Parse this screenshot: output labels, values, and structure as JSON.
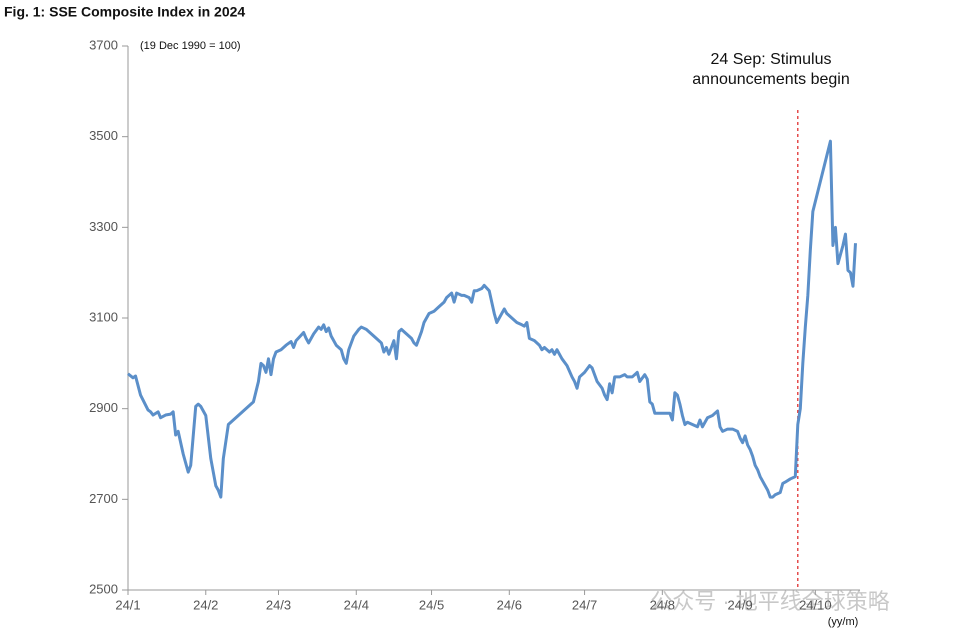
{
  "chart_data": {
    "type": "line",
    "title": "Fig. 1: SSE Composite Index in 2024",
    "subtitle": "(19 Dec 1990 = 100)",
    "x_label": "(yy/m)",
    "annotation": {
      "text": [
        "24 Sep: Stimulus",
        "announcements begin"
      ],
      "x": 268,
      "color": "#e03030"
    },
    "watermark": "公众号 · 地平线全球策略",
    "xlim": [
      1,
      292
    ],
    "xticks": [
      {
        "value": 1,
        "label": "24/1"
      },
      {
        "value": 32,
        "label": "24/2"
      },
      {
        "value": 61,
        "label": "24/3"
      },
      {
        "value": 92,
        "label": "24/4"
      },
      {
        "value": 122,
        "label": "24/5"
      },
      {
        "value": 153,
        "label": "24/6"
      },
      {
        "value": 183,
        "label": "24/7"
      },
      {
        "value": 214,
        "label": "24/8"
      },
      {
        "value": 245,
        "label": "24/9"
      },
      {
        "value": 275,
        "label": "24/10"
      }
    ],
    "ylim": [
      2500,
      3700
    ],
    "yticks": [
      2500,
      2700,
      2900,
      3100,
      3300,
      3500,
      3700
    ],
    "grid": false,
    "x": [
      1,
      3,
      4,
      6,
      9,
      10,
      11,
      13,
      14,
      16,
      18,
      19,
      20,
      21,
      23,
      25,
      26,
      28,
      29,
      30,
      32,
      34,
      35,
      36,
      37,
      38,
      39,
      41,
      51,
      53,
      54,
      55,
      56,
      57,
      58,
      59,
      60,
      62,
      64,
      66,
      67,
      68,
      70,
      71,
      72,
      73,
      75,
      77,
      78,
      79,
      80,
      81,
      82,
      84,
      85,
      86,
      87,
      88,
      89,
      91,
      93,
      94,
      96,
      98,
      100,
      102,
      103,
      104,
      105,
      107,
      108,
      109,
      110,
      112,
      114,
      115,
      116,
      118,
      119,
      121,
      123,
      125,
      127,
      128,
      130,
      131,
      132,
      134,
      135,
      137,
      138,
      139,
      140,
      142,
      143,
      145,
      147,
      148,
      149,
      151,
      152,
      154,
      156,
      158,
      159,
      160,
      161,
      163,
      165,
      166,
      167,
      169,
      170,
      171,
      172,
      174,
      176,
      178,
      179,
      180,
      181,
      183,
      185,
      186,
      188,
      190,
      191,
      192,
      193,
      194,
      195,
      197,
      199,
      200,
      202,
      204,
      205,
      207,
      208,
      209,
      210,
      211,
      213,
      215,
      217,
      218,
      219,
      220,
      221,
      222,
      223,
      224,
      226,
      228,
      229,
      230,
      232,
      234,
      236,
      237,
      238,
      240,
      242,
      244,
      245,
      246,
      247,
      248,
      249,
      250,
      251,
      252,
      253,
      254,
      255,
      256,
      257,
      258,
      259,
      261,
      262,
      263,
      265,
      267,
      268,
      269,
      270,
      271,
      272,
      273,
      274,
      281,
      282,
      283,
      284,
      286,
      287,
      288,
      289,
      290,
      291
    ],
    "series": [
      {
        "name": "SSE Composite Index",
        "color": "#5b8fc9",
        "values": [
          2977,
          2968,
          2972,
          2930,
          2897,
          2893,
          2886,
          2893,
          2880,
          2886,
          2888,
          2893,
          2842,
          2850,
          2800,
          2760,
          2775,
          2905,
          2910,
          2905,
          2885,
          2790,
          2760,
          2730,
          2720,
          2705,
          2790,
          2865,
          2915,
          2960,
          3000,
          2995,
          2980,
          3010,
          2975,
          3010,
          3025,
          3030,
          3040,
          3048,
          3035,
          3050,
          3062,
          3068,
          3055,
          3045,
          3065,
          3080,
          3075,
          3085,
          3070,
          3078,
          3060,
          3040,
          3035,
          3030,
          3010,
          3000,
          3030,
          3060,
          3075,
          3080,
          3075,
          3065,
          3055,
          3045,
          3025,
          3035,
          3020,
          3050,
          3010,
          3070,
          3075,
          3065,
          3055,
          3045,
          3040,
          3070,
          3090,
          3110,
          3115,
          3125,
          3135,
          3145,
          3155,
          3135,
          3155,
          3150,
          3150,
          3145,
          3135,
          3160,
          3160,
          3165,
          3172,
          3160,
          3110,
          3090,
          3100,
          3120,
          3110,
          3100,
          3090,
          3085,
          3082,
          3090,
          3055,
          3050,
          3040,
          3030,
          3035,
          3025,
          3030,
          3020,
          3030,
          3010,
          2995,
          2970,
          2960,
          2945,
          2970,
          2980,
          2995,
          2990,
          2960,
          2945,
          2930,
          2920,
          2955,
          2935,
          2970,
          2970,
          2975,
          2970,
          2970,
          2980,
          2960,
          2975,
          2965,
          2915,
          2910,
          2890,
          2890,
          2890,
          2890,
          2875,
          2935,
          2930,
          2910,
          2885,
          2865,
          2870,
          2865,
          2860,
          2875,
          2860,
          2880,
          2885,
          2895,
          2860,
          2850,
          2855,
          2855,
          2850,
          2835,
          2825,
          2840,
          2820,
          2810,
          2795,
          2775,
          2765,
          2750,
          2740,
          2730,
          2720,
          2705,
          2705,
          2710,
          2715,
          2735,
          2738,
          2745,
          2750,
          2865,
          2900,
          3000,
          3080,
          3150,
          3250,
          3335,
          3490,
          3260,
          3300,
          3220,
          3260,
          3285,
          3205,
          3200,
          3170,
          3265
        ]
      }
    ]
  }
}
